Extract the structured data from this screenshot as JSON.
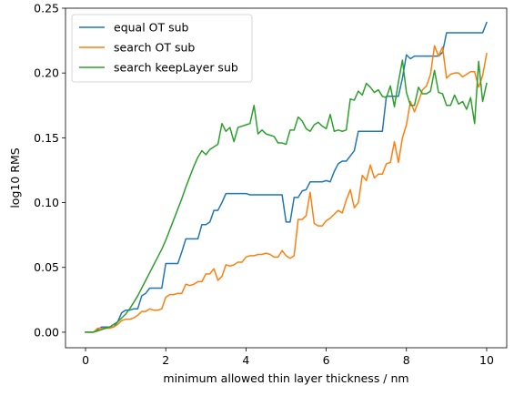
{
  "chart_data": {
    "type": "line",
    "title": "",
    "xlabel": "minimum allowed thin layer thickness / nm",
    "ylabel": "log10 RMS",
    "xlim": [
      -0.5,
      10.5
    ],
    "ylim": [
      -0.012,
      0.25
    ],
    "xticks": [
      0,
      2,
      4,
      6,
      8,
      10
    ],
    "xtick_labels": [
      "0",
      "2",
      "4",
      "6",
      "8",
      "10"
    ],
    "yticks": [
      0.0,
      0.05,
      0.1,
      0.15,
      0.2,
      0.25
    ],
    "ytick_labels": [
      "0.00",
      "0.05",
      "0.10",
      "0.15",
      "0.20",
      "0.25"
    ],
    "grid": false,
    "legend_position": "top-left",
    "series": [
      {
        "name": "equal OT sub",
        "color": "#1f77b4",
        "x": [
          0.0,
          0.1,
          0.2,
          0.3,
          0.4,
          0.5,
          0.6,
          0.7,
          0.8,
          0.9,
          1.0,
          1.1,
          1.2,
          1.3,
          1.4,
          1.5,
          1.6,
          1.7,
          1.8,
          1.9,
          2.0,
          2.1,
          2.2,
          2.3,
          2.4,
          2.5,
          2.6,
          2.7,
          2.8,
          2.9,
          3.0,
          3.1,
          3.2,
          3.3,
          3.4,
          3.5,
          3.6,
          3.7,
          3.8,
          3.9,
          4.0,
          4.1,
          4.2,
          4.3,
          4.4,
          4.5,
          4.6,
          4.7,
          4.8,
          4.9,
          5.0,
          5.1,
          5.2,
          5.3,
          5.4,
          5.5,
          5.6,
          5.7,
          5.8,
          5.9,
          6.0,
          6.1,
          6.2,
          6.3,
          6.4,
          6.5,
          6.6,
          6.7,
          6.8,
          6.9,
          7.0,
          7.1,
          7.2,
          7.3,
          7.4,
          7.5,
          7.6,
          7.7,
          7.8,
          7.9,
          8.0,
          8.1,
          8.2,
          8.3,
          8.4,
          8.5,
          8.6,
          8.7,
          8.8,
          8.9,
          9.0,
          9.1,
          9.2,
          9.3,
          9.4,
          9.5,
          9.6,
          9.7,
          9.8,
          9.9,
          10.0
        ],
        "values": [
          0.0,
          0.0,
          0.0,
          0.002,
          0.004,
          0.004,
          0.004,
          0.004,
          0.008,
          0.015,
          0.017,
          0.017,
          0.018,
          0.018,
          0.028,
          0.03,
          0.034,
          0.034,
          0.034,
          0.034,
          0.053,
          0.053,
          0.053,
          0.053,
          0.062,
          0.072,
          0.072,
          0.072,
          0.072,
          0.083,
          0.083,
          0.085,
          0.094,
          0.094,
          0.1,
          0.107,
          0.107,
          0.107,
          0.107,
          0.107,
          0.107,
          0.106,
          0.106,
          0.106,
          0.106,
          0.106,
          0.106,
          0.106,
          0.106,
          0.106,
          0.085,
          0.085,
          0.104,
          0.104,
          0.109,
          0.11,
          0.116,
          0.116,
          0.116,
          0.116,
          0.117,
          0.116,
          0.124,
          0.13,
          0.132,
          0.132,
          0.136,
          0.14,
          0.155,
          0.155,
          0.155,
          0.155,
          0.155,
          0.155,
          0.155,
          0.182,
          0.182,
          0.182,
          0.182,
          0.196,
          0.214,
          0.211,
          0.213,
          0.213,
          0.213,
          0.213,
          0.213,
          0.213,
          0.213,
          0.216,
          0.231,
          0.231,
          0.231,
          0.231,
          0.231,
          0.231,
          0.231,
          0.231,
          0.231,
          0.231,
          0.239
        ]
      },
      {
        "name": "search OT sub",
        "color": "#ff7f0e",
        "x": [
          0.0,
          0.1,
          0.2,
          0.3,
          0.4,
          0.5,
          0.6,
          0.7,
          0.8,
          0.9,
          1.0,
          1.1,
          1.2,
          1.3,
          1.4,
          1.5,
          1.6,
          1.7,
          1.8,
          1.9,
          2.0,
          2.1,
          2.2,
          2.3,
          2.4,
          2.5,
          2.6,
          2.7,
          2.8,
          2.9,
          3.0,
          3.1,
          3.2,
          3.3,
          3.4,
          3.5,
          3.6,
          3.7,
          3.8,
          3.9,
          4.0,
          4.1,
          4.2,
          4.3,
          4.4,
          4.5,
          4.6,
          4.7,
          4.8,
          4.9,
          5.0,
          5.1,
          5.2,
          5.3,
          5.4,
          5.5,
          5.6,
          5.7,
          5.8,
          5.9,
          6.0,
          6.1,
          6.2,
          6.3,
          6.4,
          6.5,
          6.6,
          6.7,
          6.8,
          6.9,
          7.0,
          7.1,
          7.2,
          7.3,
          7.4,
          7.5,
          7.6,
          7.7,
          7.8,
          7.9,
          8.0,
          8.1,
          8.2,
          8.3,
          8.4,
          8.5,
          8.6,
          8.7,
          8.8,
          8.9,
          9.0,
          9.1,
          9.2,
          9.3,
          9.4,
          9.5,
          9.6,
          9.7,
          9.8,
          9.9,
          10.0
        ],
        "values": [
          0.0,
          0.0,
          0.0,
          0.003,
          0.003,
          0.003,
          0.003,
          0.004,
          0.006,
          0.009,
          0.01,
          0.01,
          0.011,
          0.013,
          0.016,
          0.016,
          0.018,
          0.017,
          0.017,
          0.018,
          0.027,
          0.029,
          0.029,
          0.03,
          0.03,
          0.037,
          0.036,
          0.037,
          0.039,
          0.039,
          0.045,
          0.045,
          0.049,
          0.04,
          0.043,
          0.052,
          0.051,
          0.052,
          0.054,
          0.054,
          0.058,
          0.059,
          0.059,
          0.06,
          0.06,
          0.061,
          0.06,
          0.058,
          0.058,
          0.063,
          0.059,
          0.057,
          0.059,
          0.087,
          0.087,
          0.09,
          0.108,
          0.084,
          0.082,
          0.082,
          0.086,
          0.088,
          0.091,
          0.094,
          0.092,
          0.102,
          0.11,
          0.096,
          0.1,
          0.121,
          0.117,
          0.129,
          0.119,
          0.122,
          0.122,
          0.13,
          0.131,
          0.147,
          0.131,
          0.15,
          0.16,
          0.178,
          0.17,
          0.178,
          0.187,
          0.19,
          0.199,
          0.221,
          0.213,
          0.22,
          0.196,
          0.199,
          0.2,
          0.2,
          0.197,
          0.199,
          0.201,
          0.201,
          0.189,
          0.198,
          0.215
        ]
      },
      {
        "name": "search keepLayer sub",
        "color": "#2ca02c",
        "x": [
          0.0,
          0.1,
          0.2,
          0.3,
          0.4,
          0.5,
          0.6,
          0.7,
          0.8,
          0.9,
          1.0,
          1.1,
          1.2,
          1.3,
          1.4,
          1.5,
          1.6,
          1.7,
          1.8,
          1.9,
          2.0,
          2.1,
          2.2,
          2.3,
          2.4,
          2.5,
          2.6,
          2.7,
          2.8,
          2.9,
          3.0,
          3.1,
          3.2,
          3.3,
          3.4,
          3.5,
          3.6,
          3.7,
          3.8,
          3.9,
          4.0,
          4.1,
          4.2,
          4.3,
          4.4,
          4.5,
          4.6,
          4.7,
          4.8,
          4.9,
          5.0,
          5.1,
          5.2,
          5.3,
          5.4,
          5.5,
          5.6,
          5.7,
          5.8,
          5.9,
          6.0,
          6.1,
          6.2,
          6.3,
          6.4,
          6.5,
          6.6,
          6.7,
          6.8,
          6.9,
          7.0,
          7.1,
          7.2,
          7.3,
          7.4,
          7.5,
          7.6,
          7.7,
          7.8,
          7.9,
          8.0,
          8.1,
          8.2,
          8.3,
          8.4,
          8.5,
          8.6,
          8.7,
          8.8,
          8.9,
          9.0,
          9.1,
          9.2,
          9.3,
          9.4,
          9.5,
          9.6,
          9.7,
          9.8,
          9.9,
          10.0
        ],
        "values": [
          0.0,
          0.0,
          0.0,
          0.001,
          0.002,
          0.003,
          0.004,
          0.006,
          0.008,
          0.011,
          0.014,
          0.018,
          0.023,
          0.028,
          0.034,
          0.04,
          0.046,
          0.052,
          0.058,
          0.064,
          0.071,
          0.079,
          0.087,
          0.095,
          0.103,
          0.112,
          0.12,
          0.128,
          0.135,
          0.14,
          0.137,
          0.141,
          0.143,
          0.145,
          0.161,
          0.155,
          0.158,
          0.147,
          0.158,
          0.159,
          0.16,
          0.161,
          0.175,
          0.153,
          0.156,
          0.153,
          0.152,
          0.151,
          0.146,
          0.146,
          0.145,
          0.156,
          0.156,
          0.166,
          0.163,
          0.157,
          0.155,
          0.16,
          0.162,
          0.159,
          0.157,
          0.168,
          0.155,
          0.156,
          0.155,
          0.156,
          0.18,
          0.179,
          0.186,
          0.183,
          0.192,
          0.189,
          0.185,
          0.187,
          0.182,
          0.181,
          0.19,
          0.174,
          0.193,
          0.21,
          0.185,
          0.175,
          0.175,
          0.189,
          0.184,
          0.184,
          0.186,
          0.202,
          0.185,
          0.184,
          0.175,
          0.175,
          0.183,
          0.176,
          0.178,
          0.172,
          0.181,
          0.161,
          0.209,
          0.178,
          0.192
        ]
      }
    ]
  }
}
